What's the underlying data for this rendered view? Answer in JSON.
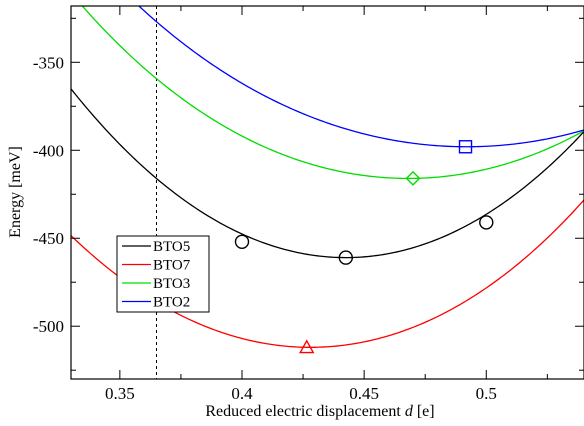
{
  "chart_data": {
    "type": "line",
    "xlabel_prefix": "Reduced electric displacement ",
    "xlabel_var": "d",
    "xlabel_suffix": " [e]",
    "ylabel": "Energy [meV]",
    "xlim": [
      0.33,
      0.54
    ],
    "ylim": [
      -530,
      -318
    ],
    "xticks": [
      0.35,
      0.4,
      0.45,
      0.5
    ],
    "xtick_labels": [
      "0.35",
      "0.4",
      "0.45",
      "0.5"
    ],
    "yticks": [
      -350,
      -400,
      -450,
      -500
    ],
    "ytick_labels": [
      "-350",
      "-400",
      "-450",
      "-500"
    ],
    "vline_x": 0.365,
    "legend_position": "lower-left",
    "grid": false,
    "series": [
      {
        "name": "BTO5",
        "color": "#000000",
        "marker": "circle",
        "curve": {
          "x0": 0.4425,
          "ymin": -461,
          "a": 7400,
          "b": 14000
        },
        "points": [
          {
            "x": 0.4,
            "y": -452
          },
          {
            "x": 0.4425,
            "y": -461
          },
          {
            "x": 0.5,
            "y": -441
          }
        ]
      },
      {
        "name": "BTO7",
        "color": "#ff0000",
        "marker": "triangle",
        "curve": {
          "x0": 0.428,
          "ymin": -512,
          "a": 6400,
          "b": 22000
        },
        "points": [
          {
            "x": 0.4265,
            "y": -512
          }
        ]
      },
      {
        "name": "BTO3",
        "color": "#00dd00",
        "marker": "diamond",
        "curve": {
          "x0": 0.468,
          "ymin": -416,
          "a": 5100,
          "b": 23000
        },
        "points": [
          {
            "x": 0.47,
            "y": -416
          }
        ]
      },
      {
        "name": "BTO2",
        "color": "#0000ff",
        "marker": "square",
        "curve": {
          "x0": 0.492,
          "ymin": -398,
          "a": 4100,
          "b": 19000
        },
        "points": [
          {
            "x": 0.4915,
            "y": -398
          }
        ]
      }
    ]
  }
}
